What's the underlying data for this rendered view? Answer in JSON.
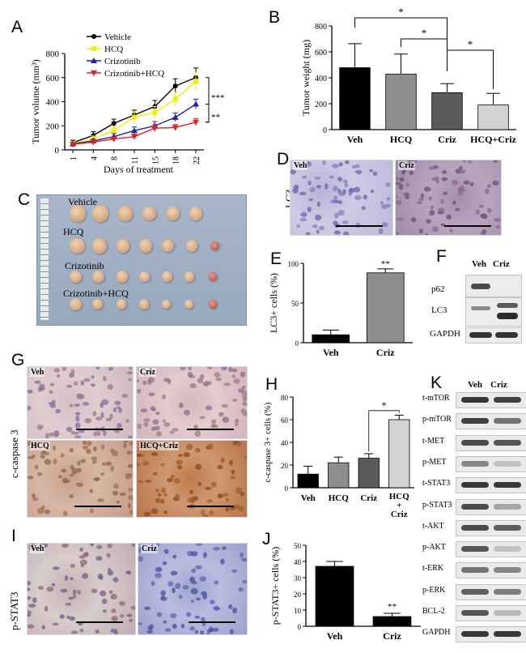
{
  "panels": {
    "A": {
      "label": "A",
      "chart_data": {
        "type": "line",
        "x": [
          "1",
          "4",
          "8",
          "11",
          "15",
          "18",
          "22"
        ],
        "xlabel": "Days of treatment",
        "ylabel": "Tumor volume (mm³)",
        "ylim": [
          0,
          800
        ],
        "yticks": [
          0,
          200,
          400,
          600,
          800
        ],
        "legend_position": "top-left",
        "series": [
          {
            "name": "Vehicle",
            "color": "#000000",
            "marker": "circle",
            "values": [
              60,
              120,
              220,
              290,
              360,
              530,
              600
            ],
            "errors": [
              20,
              30,
              35,
              40,
              50,
              60,
              80
            ]
          },
          {
            "name": "HCQ",
            "color": "#f2ee00",
            "marker": "square",
            "values": [
              55,
              90,
              160,
              270,
              310,
              420,
              570
            ],
            "errors": [
              15,
              25,
              35,
              45,
              50,
              60,
              75
            ]
          },
          {
            "name": "Crizotinib",
            "color": "#1f1fb4",
            "marker": "triangle",
            "values": [
              50,
              75,
              110,
              160,
              200,
              270,
              380
            ],
            "errors": [
              10,
              15,
              25,
              30,
              35,
              35,
              40
            ]
          },
          {
            "name": "Crizotinib+HCQ",
            "color": "#e52020",
            "marker": "triangle-down",
            "values": [
              45,
              65,
              90,
              110,
              180,
              185,
              230
            ],
            "errors": [
              10,
              10,
              15,
              20,
              30,
              25,
              30
            ]
          }
        ],
        "annotations": [
          "***",
          "**"
        ]
      }
    },
    "B": {
      "label": "B",
      "chart_data": {
        "type": "bar",
        "categories": [
          "Veh",
          "HCQ",
          "Criz",
          "HCQ+Criz"
        ],
        "values": [
          478,
          428,
          285,
          190
        ],
        "errors": [
          185,
          155,
          70,
          90
        ],
        "colors": [
          "#000000",
          "#8e8e8e",
          "#5a5a5a",
          "#d2d2d2"
        ],
        "ylabel": "Tumor weight (mg)",
        "ylim": [
          0,
          800
        ],
        "yticks": [
          0,
          200,
          400,
          600,
          800
        ],
        "significance": "*"
      }
    },
    "C": {
      "label": "C",
      "groups": [
        "Vehicle",
        "HCQ",
        "Crizotinib",
        "Crizotinib+HCQ"
      ]
    },
    "D": {
      "label": "D",
      "row_label": "LC3",
      "images": [
        "Veh",
        "Criz"
      ]
    },
    "E": {
      "label": "E",
      "chart_data": {
        "type": "bar",
        "categories": [
          "Veh",
          "Criz"
        ],
        "values": [
          10,
          88
        ],
        "errors": [
          6,
          5
        ],
        "colors": [
          "#000000",
          "#8e8e8e"
        ],
        "ylabel": "LC3+ cells (%)",
        "ylim": [
          0,
          100
        ],
        "yticks": [
          0,
          50,
          100
        ],
        "significance": "**"
      }
    },
    "F": {
      "label": "F",
      "lanes": [
        "Veh",
        "Criz"
      ],
      "rows": [
        "p62",
        "LC3",
        "GAPDH"
      ]
    },
    "G": {
      "label": "G",
      "row_label": "c-caspase 3",
      "images": [
        "Veh",
        "Criz",
        "HCQ",
        "HCQ+Criz"
      ]
    },
    "H": {
      "label": "H",
      "chart_data": {
        "type": "bar",
        "categories": [
          "Veh",
          "HCQ",
          "Criz",
          "HCQ + Criz"
        ],
        "values": [
          12,
          22,
          26,
          60
        ],
        "errors": [
          7,
          5,
          4,
          4
        ],
        "colors": [
          "#000000",
          "#8e8e8e",
          "#5a5a5a",
          "#d2d2d2"
        ],
        "ylabel": "c-caspase 3+ cells (%)",
        "ylim": [
          0,
          80
        ],
        "yticks": [
          0,
          20,
          40,
          60,
          80
        ],
        "significance": "*"
      }
    },
    "I": {
      "label": "I",
      "row_label": "p-STAT3",
      "images": [
        "Veh",
        "Criz"
      ]
    },
    "J": {
      "label": "J",
      "chart_data": {
        "type": "bar",
        "categories": [
          "Veh",
          "Criz"
        ],
        "values": [
          37,
          6
        ],
        "errors": [
          3,
          2
        ],
        "colors": [
          "#000000",
          "#000000"
        ],
        "ylabel": "p-STAT3+ cells (%)",
        "ylim": [
          0,
          50
        ],
        "yticks": [
          0,
          10,
          20,
          30,
          40,
          50
        ],
        "significance": "**"
      }
    },
    "K": {
      "label": "K",
      "lanes": [
        "Veh",
        "Criz"
      ],
      "rows": [
        "t-mTOR",
        "p-mTOR",
        "t-MET",
        "p-MET",
        "t-STAT3",
        "p-STAT3",
        "t-AKT",
        "p-AKT",
        "t-ERK",
        "p-ERK",
        "BCL-2",
        "GAPDH"
      ]
    }
  }
}
